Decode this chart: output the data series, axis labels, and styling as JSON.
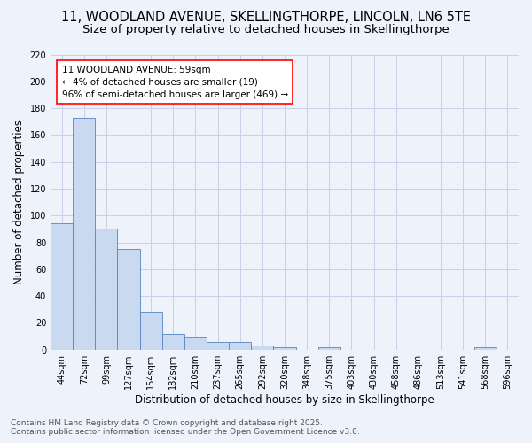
{
  "title_line1": "11, WOODLAND AVENUE, SKELLINGTHORPE, LINCOLN, LN6 5TE",
  "title_line2": "Size of property relative to detached houses in Skellingthorpe",
  "xlabel": "Distribution of detached houses by size in Skellingthorpe",
  "ylabel": "Number of detached properties",
  "categories": [
    "44sqm",
    "72sqm",
    "99sqm",
    "127sqm",
    "154sqm",
    "182sqm",
    "210sqm",
    "237sqm",
    "265sqm",
    "292sqm",
    "320sqm",
    "348sqm",
    "375sqm",
    "403sqm",
    "430sqm",
    "458sqm",
    "486sqm",
    "513sqm",
    "541sqm",
    "568sqm",
    "596sqm"
  ],
  "values": [
    94,
    173,
    90,
    75,
    28,
    12,
    10,
    6,
    6,
    3,
    2,
    0,
    2,
    0,
    0,
    0,
    0,
    0,
    0,
    2,
    0
  ],
  "bar_color": "#c9d9f0",
  "bar_edge_color": "#5585c5",
  "grid_color": "#c8cfe8",
  "background_color": "#eef2fb",
  "annotation_text": "11 WOODLAND AVENUE: 59sqm\n← 4% of detached houses are smaller (19)\n96% of semi-detached houses are larger (469) →",
  "vline_x_index": 0.5,
  "ylim": [
    0,
    220
  ],
  "yticks": [
    0,
    20,
    40,
    60,
    80,
    100,
    120,
    140,
    160,
    180,
    200,
    220
  ],
  "footer_line1": "Contains HM Land Registry data © Crown copyright and database right 2025.",
  "footer_line2": "Contains public sector information licensed under the Open Government Licence v3.0.",
  "title_fontsize": 10.5,
  "subtitle_fontsize": 9.5,
  "axis_label_fontsize": 8.5,
  "tick_fontsize": 7,
  "annotation_fontsize": 7.5,
  "footer_fontsize": 6.5
}
